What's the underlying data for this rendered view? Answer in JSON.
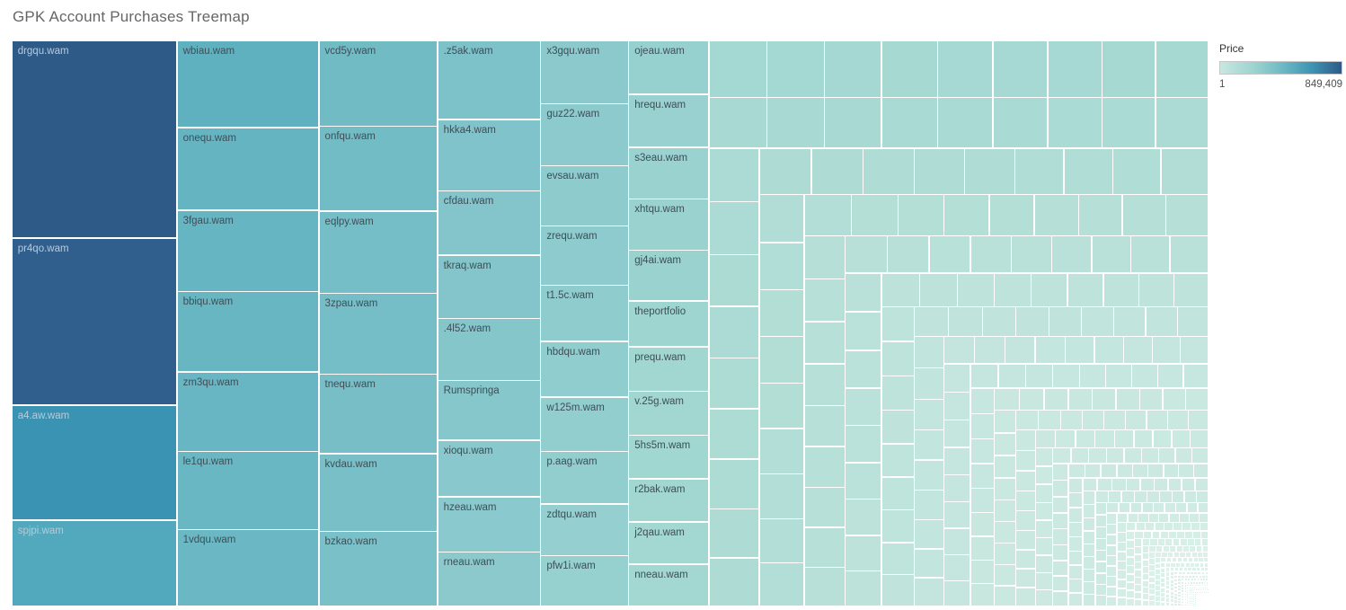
{
  "page": {
    "title": "GPK Account Purchases Treemap"
  },
  "legend": {
    "title": "Price",
    "min_label": "1",
    "max_label": "849,409"
  },
  "chart_data": {
    "type": "treemap",
    "title": "GPK Account Purchases Treemap",
    "size_by": "Price",
    "color_by": "Price",
    "value_min": 1,
    "value_max": 849409,
    "legend_position": "top-right",
    "color_stops": [
      [
        0.0,
        "#dff2ea"
      ],
      [
        0.004,
        "#cdeae2"
      ],
      [
        0.05,
        "#b7e0d8"
      ],
      [
        0.101,
        "#a4d8d2"
      ],
      [
        0.118,
        "#9dd4d0"
      ],
      [
        0.153,
        "#8fccce"
      ],
      [
        0.2,
        "#84c5cb"
      ],
      [
        0.294,
        "#76bec7"
      ],
      [
        0.353,
        "#66b5c2"
      ],
      [
        0.437,
        "#52a8bc"
      ],
      [
        0.581,
        "#3b93b3"
      ],
      [
        0.7,
        "#367fa3"
      ],
      [
        0.845,
        "#315f8d"
      ],
      [
        1.0,
        "#2e5a88"
      ]
    ],
    "labeled_columns": [
      {
        "cells": [
          {
            "name": "drgqu.wam",
            "value": 849409
          },
          {
            "name": "pr4qo.wam",
            "value": 718000
          },
          {
            "name": "a4.aw.wam",
            "value": 494000
          },
          {
            "name": "spjpi.wam",
            "value": 371000
          }
        ]
      },
      {
        "cells": [
          {
            "name": "wbiau.wam",
            "value": 322000
          },
          {
            "name": "onequ.wam",
            "value": 305000
          },
          {
            "name": "3fgau.wam",
            "value": 300000
          },
          {
            "name": "bbiqu.wam",
            "value": 297000
          },
          {
            "name": "zm3qu.wam",
            "value": 293000
          },
          {
            "name": "le1qu.wam",
            "value": 289000
          },
          {
            "name": "1vdqu.wam",
            "value": 284000
          }
        ]
      },
      {
        "cells": [
          {
            "name": "vcd5y.wam",
            "value": 265000
          },
          {
            "name": "onfqu.wam",
            "value": 262000
          },
          {
            "name": "eqlpy.wam",
            "value": 254000
          },
          {
            "name": "3zpau.wam",
            "value": 250000
          },
          {
            "name": "tnequ.wam",
            "value": 245000
          },
          {
            "name": "kvdau.wam",
            "value": 240000
          },
          {
            "name": "bzkao.wam",
            "value": 232000
          }
        ]
      },
      {
        "cells": [
          {
            "name": ".z5ak.wam",
            "value": 212000
          },
          {
            "name": "hkka4.wam",
            "value": 191000
          },
          {
            "name": "cfdau.wam",
            "value": 173000
          },
          {
            "name": "tkraq.wam",
            "value": 169000
          },
          {
            "name": ".4l52.wam",
            "value": 166000
          },
          {
            "name": "Rumspringa",
            "value": 161000
          },
          {
            "name": "xioqu.wam",
            "value": 151000
          },
          {
            "name": "hzeau.wam",
            "value": 148000
          },
          {
            "name": "rneau.wam",
            "value": 146000
          }
        ]
      },
      {
        "cells": [
          {
            "name": "x3gqu.wam",
            "value": 145000
          },
          {
            "name": "guz22.wam",
            "value": 142000
          },
          {
            "name": "evsau.wam",
            "value": 138000
          },
          {
            "name": "zrequ.wam",
            "value": 135000
          },
          {
            "name": "t1.5c.wam",
            "value": 129000
          },
          {
            "name": "hbdqu.wam",
            "value": 127000
          },
          {
            "name": "w125m.wam",
            "value": 124000
          },
          {
            "name": "p.aag.wam",
            "value": 121000
          },
          {
            "name": "zdtqu.wam",
            "value": 118000
          },
          {
            "name": "pfw1i.wam",
            "value": 116000
          }
        ]
      },
      {
        "cells": [
          {
            "name": "ojeau.wam",
            "value": 113000
          },
          {
            "name": "hrequ.wam",
            "value": 111000
          },
          {
            "name": "s3eau.wam",
            "value": 108000
          },
          {
            "name": "xhtqu.wam",
            "value": 107000
          },
          {
            "name": "gj4ai.wam",
            "value": 106000
          },
          {
            "name": "theportfolio",
            "value": 96000
          },
          {
            "name": "prequ.wam",
            "value": 93000
          },
          {
            "name": "v.25g.wam",
            "value": 92000
          },
          {
            "name": "5hs5m.wam",
            "value": 91000
          },
          {
            "name": "r2bak.wam",
            "value": 90000
          },
          {
            "name": "j2qau.wam",
            "value": 89000
          },
          {
            "name": "nneau.wam",
            "value": 88000
          }
        ]
      }
    ],
    "unlabeled_tail": {
      "count": 707,
      "start_value": 86000,
      "decay": 0.98831
    }
  }
}
